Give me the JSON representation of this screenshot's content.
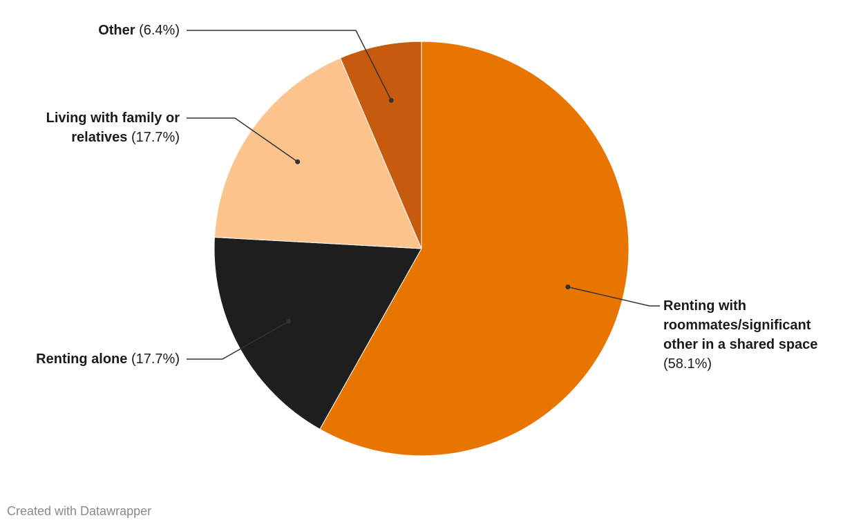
{
  "chart_data": {
    "type": "pie",
    "categories": [
      "Renting with roommates/significant other in a shared space",
      "Renting alone",
      "Living with family or relatives",
      "Other"
    ],
    "values": [
      58.1,
      17.7,
      17.7,
      6.4
    ],
    "value_labels": [
      "(58.1%)",
      "(17.7%)",
      "(17.7%)",
      "(6.4%)"
    ],
    "colors": [
      "#e87500",
      "#1e1e1e",
      "#fdc38d",
      "#c65a0e"
    ],
    "footer": "Created with Datawrapper"
  }
}
